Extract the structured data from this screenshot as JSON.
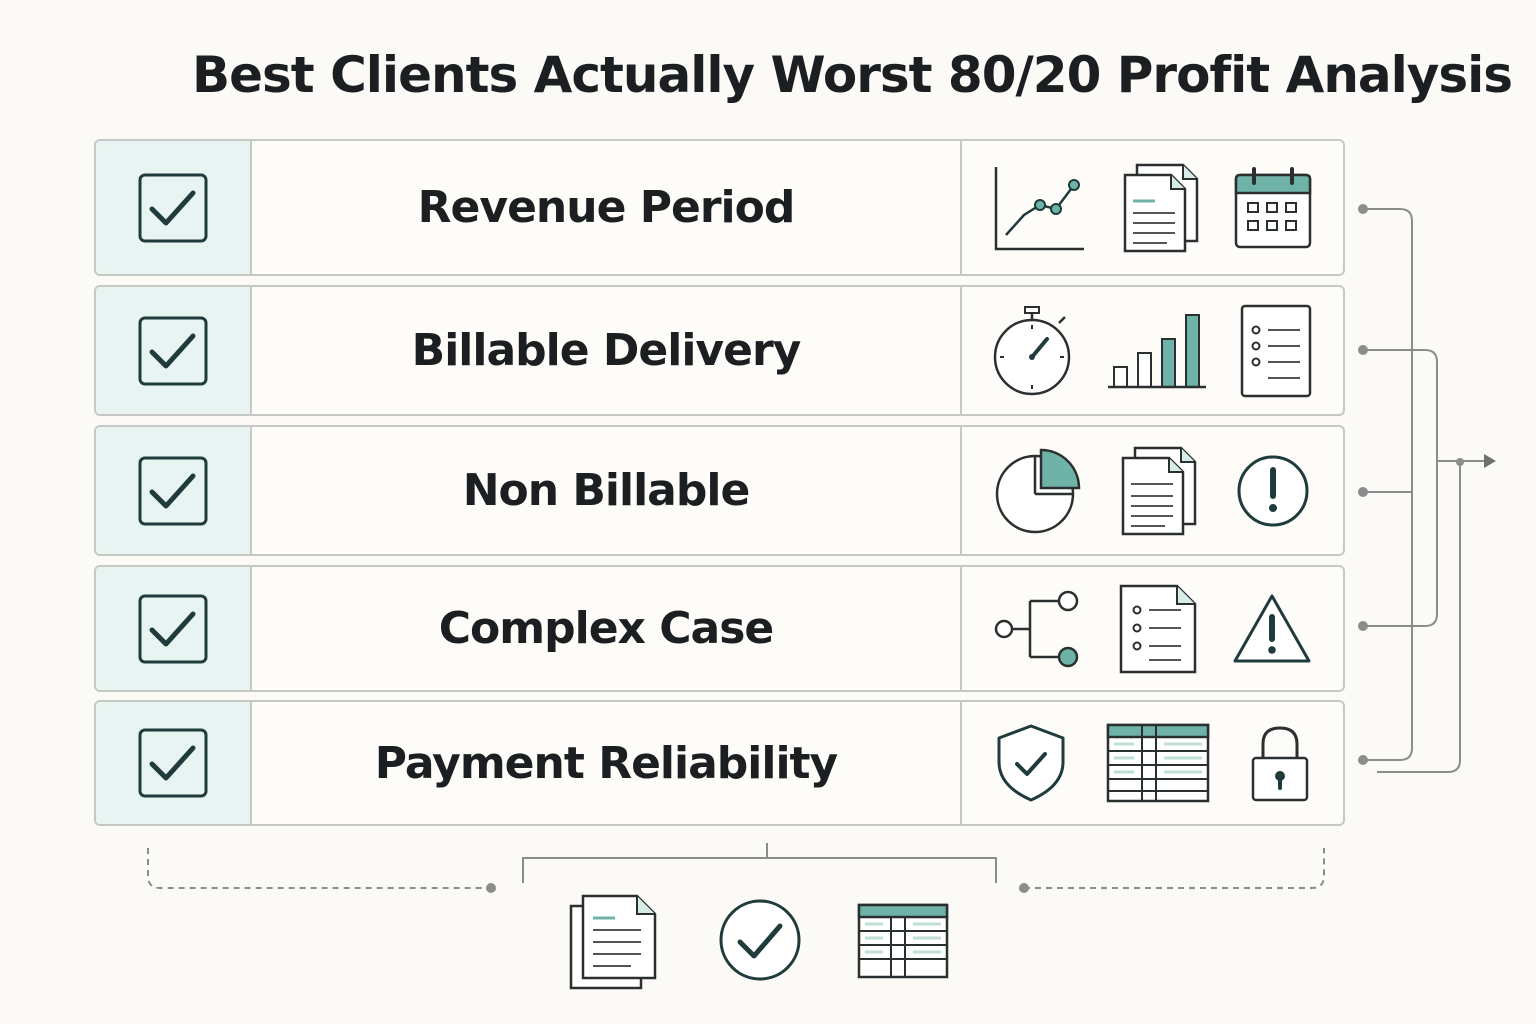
{
  "title": "Best Clients Actually Worst 80/20 Profit Analysis",
  "rows": [
    {
      "label": "Revenue Period",
      "checked": true,
      "icons": [
        "line-chart-icon",
        "documents-icon",
        "calendar-icon"
      ]
    },
    {
      "label": "Billable Delivery",
      "checked": true,
      "icons": [
        "stopwatch-icon",
        "bar-chart-icon",
        "checklist-icon"
      ]
    },
    {
      "label": "Non Billable",
      "checked": true,
      "icons": [
        "pie-chart-icon",
        "documents-icon",
        "alert-circle-icon"
      ]
    },
    {
      "label": "Complex Case",
      "checked": true,
      "icons": [
        "branch-icon",
        "checklist-document-icon",
        "warning-triangle-icon"
      ]
    },
    {
      "label": "Payment Reliability",
      "checked": true,
      "icons": [
        "shield-check-icon",
        "table-icon",
        "padlock-icon"
      ]
    }
  ],
  "footer_icons": [
    "documents-icon",
    "check-circle-icon",
    "table-icon"
  ],
  "colors": {
    "accent": "#6fb3a8",
    "ink": "#1f3b3c",
    "check_bg": "#e8f4f1",
    "border": "#c6c8c6",
    "connector": "#8c8c8c"
  }
}
